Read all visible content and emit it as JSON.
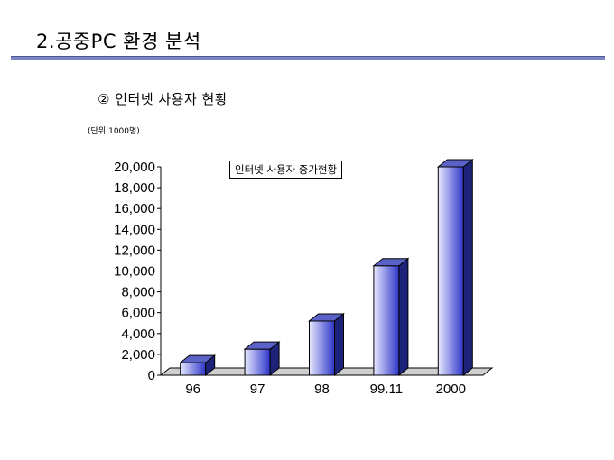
{
  "slide": {
    "title": "2.공중PC 환경 분석",
    "section_title": "②   인터넷 사용자 현황",
    "unit_label": "(단위:1000명)"
  },
  "colors": {
    "rule": "#7b86c2",
    "bar_light": "#e6e8ff",
    "bar_dark": "#2e36c8",
    "bar_side": "#1c2378",
    "bar_top": "#5a62c8"
  },
  "chart_data": {
    "type": "bar",
    "categories": [
      "96",
      "97",
      "98",
      "99.11",
      "2000"
    ],
    "values": [
      1200,
      2500,
      5200,
      10500,
      20000
    ],
    "legend_label": "인터넷 사용자 증가현황",
    "ylim": [
      0,
      20000
    ],
    "yticks": [
      "0",
      "2,000",
      "4,000",
      "6,000",
      "8,000",
      "10,000",
      "12,000",
      "14,000",
      "16,000",
      "18,000",
      "20,000"
    ],
    "grid": false,
    "legend_placement": "top-center"
  }
}
